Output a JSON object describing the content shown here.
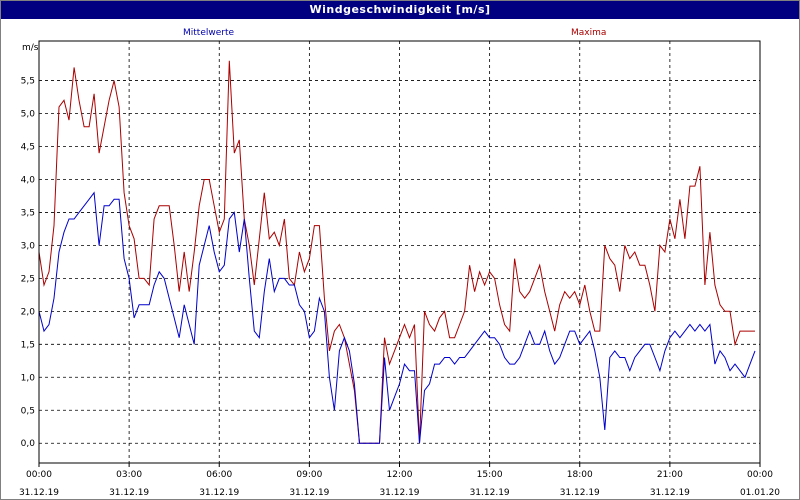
{
  "window": {
    "title": "Windgeschwindigkeit [m/s]"
  },
  "chart_data": {
    "type": "line",
    "title": "Windgeschwindigkeit [m/s]",
    "ylabel": "m/s",
    "ylim": [
      -0.3,
      6.1
    ],
    "yticks": [
      0.0,
      0.5,
      1.0,
      1.5,
      2.0,
      2.5,
      3.0,
      3.5,
      4.0,
      4.5,
      5.0,
      5.5
    ],
    "ytick_labels": [
      "0,0",
      "0,5",
      "1,0",
      "1,5",
      "2,0",
      "2,5",
      "3,0",
      "3,5",
      "4,0",
      "4,5",
      "5,0",
      "5,5"
    ],
    "xlim": [
      0,
      24
    ],
    "xticks": [
      0,
      3,
      6,
      9,
      12,
      15,
      18,
      21,
      24
    ],
    "xtick_time": [
      "00:00",
      "03:00",
      "06:00",
      "09:00",
      "12:00",
      "15:00",
      "18:00",
      "21:00",
      "00:00"
    ],
    "xtick_date": [
      "31.12.19",
      "31.12.19",
      "31.12.19",
      "31.12.19",
      "31.12.19",
      "31.12.19",
      "31.12.19",
      "31.12.19",
      "01.01.20"
    ],
    "grid": true,
    "colors": {
      "Mittelwerte": "#0000cc",
      "Maxima": "#aa0000"
    },
    "series": [
      {
        "name": "Mittelwerte",
        "x": [
          0,
          0.15,
          0.3,
          0.45,
          0.6,
          0.75,
          0.9,
          1.05,
          1.2,
          1.35,
          1.5,
          1.65,
          1.8,
          1.95,
          2.1,
          2.25,
          2.4,
          2.55,
          2.7,
          2.85,
          3.0,
          3.15,
          3.3,
          3.45,
          3.6,
          3.75,
          3.9,
          4.05,
          4.2,
          4.35,
          4.5,
          4.65,
          4.8,
          4.95,
          5.1,
          5.25,
          5.4,
          5.55,
          5.7,
          5.85,
          6.0,
          6.15,
          6.3,
          6.45,
          6.6,
          6.75,
          6.9,
          7.05,
          7.2,
          7.35,
          7.5,
          7.65,
          7.8,
          7.95,
          8.1,
          8.25,
          8.4,
          8.55,
          8.7,
          8.85,
          9.0,
          9.15,
          9.3,
          9.45,
          9.6,
          9.75,
          9.9,
          10.05,
          10.2,
          10.35,
          10.5,
          10.65,
          10.8,
          10.95,
          11.1,
          11.25,
          11.4,
          11.55,
          11.7,
          11.85,
          12.0,
          12.15,
          12.3,
          12.45,
          12.6,
          12.75,
          12.9,
          13.05,
          13.2,
          13.35,
          13.5,
          13.65,
          13.8,
          13.95,
          14.1,
          14.25,
          14.4,
          14.55,
          14.7,
          14.85,
          15.0,
          15.15,
          15.3,
          15.45,
          15.6,
          15.75,
          15.9,
          16.05,
          16.2,
          16.35,
          16.5,
          16.65,
          16.8,
          16.95,
          17.1,
          17.25,
          17.4,
          17.55,
          17.7,
          17.85,
          18.0,
          18.15,
          18.3,
          18.45,
          18.6,
          18.75,
          18.9,
          19.05,
          19.2,
          19.35,
          19.5,
          19.65,
          19.8,
          19.95,
          20.1,
          20.25,
          20.4,
          20.55,
          20.7,
          20.85,
          21.0,
          21.15,
          21.3,
          21.45,
          21.6,
          21.75,
          21.9,
          22.05,
          22.2,
          22.35,
          22.5,
          22.65,
          22.8,
          22.95,
          23.1,
          23.25,
          23.4,
          23.55,
          23.7,
          23.85
        ],
        "values": [
          2.0,
          1.7,
          1.8,
          2.2,
          2.9,
          3.2,
          3.4,
          3.4,
          3.5,
          3.6,
          3.7,
          3.8,
          3.0,
          3.6,
          3.6,
          3.7,
          3.7,
          2.8,
          2.5,
          1.9,
          2.1,
          2.1,
          2.1,
          2.4,
          2.6,
          2.5,
          2.2,
          1.9,
          1.6,
          2.1,
          1.8,
          1.5,
          2.7,
          3.0,
          3.3,
          2.9,
          2.6,
          2.7,
          3.4,
          3.5,
          2.9,
          3.4,
          2.5,
          1.7,
          1.6,
          2.3,
          2.8,
          2.3,
          2.5,
          2.5,
          2.4,
          2.4,
          2.1,
          2.0,
          1.6,
          1.7,
          2.2,
          2.0,
          1.0,
          0.5,
          1.4,
          1.6,
          1.4,
          0.9,
          0.0,
          0.0,
          0.0,
          0.0,
          0.0,
          1.3,
          0.5,
          0.7,
          0.9,
          1.2,
          1.1,
          1.1,
          0.0,
          0.8,
          0.9,
          1.2,
          1.2,
          1.3,
          1.3,
          1.2,
          1.3,
          1.3,
          1.4,
          1.5,
          1.6,
          1.7,
          1.6,
          1.6,
          1.5,
          1.3,
          1.2,
          1.2,
          1.3,
          1.5,
          1.7,
          1.5,
          1.5,
          1.7,
          1.4,
          1.2,
          1.3,
          1.5,
          1.7,
          1.7,
          1.5,
          1.6,
          1.7,
          1.4,
          1.0,
          0.2,
          1.3,
          1.4,
          1.3,
          1.3,
          1.1,
          1.3,
          1.4,
          1.5,
          1.5,
          1.3,
          1.1,
          1.4,
          1.6,
          1.7,
          1.6,
          1.7,
          1.8,
          1.7,
          1.8,
          1.7,
          1.8,
          1.2,
          1.4,
          1.3,
          1.1,
          1.2,
          1.1,
          1.0,
          1.2,
          1.4,
          1.4,
          1.2,
          1.3,
          1.4,
          1.3,
          1.5,
          1.6,
          1.4,
          1.2,
          1.0,
          1.1,
          1.4,
          1.3,
          1.4,
          1.4,
          1.4
        ],
        "__note__": "placeholder array replaced below"
      },
      {
        "name": "Maxima",
        "x": [],
        "values": []
      }
    ]
  },
  "legend": {
    "left": "Mittelwerte",
    "right": "Maxima"
  }
}
